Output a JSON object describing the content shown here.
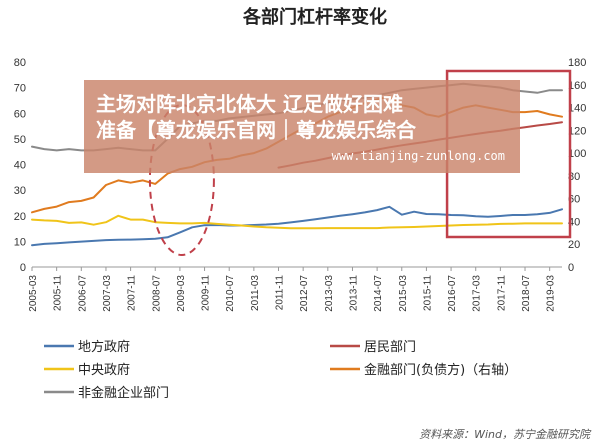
{
  "chart_data": {
    "type": "line",
    "title": "各部门杠杆率变化",
    "xlabel": "",
    "ylabel": "",
    "ylim": [
      0,
      80
    ],
    "y2lim": [
      0,
      180
    ],
    "yticks": [
      0,
      10,
      20,
      30,
      40,
      50,
      60,
      70,
      80
    ],
    "y2ticks": [
      0,
      20,
      40,
      60,
      80,
      100,
      120,
      140,
      160,
      180
    ],
    "x_tick_labels": [
      "2005-03",
      "2005-11",
      "2006-07",
      "2007-03",
      "2007-11",
      "2008-07",
      "2009-03",
      "2009-11",
      "2010-07",
      "2011-03",
      "2011-11",
      "2012-07",
      "2013-03",
      "2013-11",
      "2014-07",
      "2015-03",
      "2015-11",
      "2016-07",
      "2017-03",
      "2017-11",
      "2018-07",
      "2019-03"
    ],
    "x": [
      "2005-03",
      "2005-07",
      "2005-11",
      "2006-03",
      "2006-07",
      "2006-11",
      "2007-03",
      "2007-07",
      "2007-11",
      "2008-03",
      "2008-07",
      "2008-11",
      "2009-03",
      "2009-07",
      "2009-11",
      "2010-03",
      "2010-07",
      "2010-11",
      "2011-03",
      "2011-07",
      "2011-11",
      "2012-03",
      "2012-07",
      "2012-11",
      "2013-03",
      "2013-07",
      "2013-11",
      "2014-03",
      "2014-07",
      "2014-11",
      "2015-03",
      "2015-07",
      "2015-11",
      "2016-03",
      "2016-07",
      "2016-11",
      "2017-03",
      "2017-07",
      "2017-11",
      "2018-03",
      "2018-07",
      "2018-11",
      "2019-03",
      "2019-07"
    ],
    "series": [
      {
        "name": "地方政府",
        "axis": "left",
        "color": "#4a78b0",
        "values": [
          8.5,
          9,
          9.3,
          9.6,
          9.9,
          10.2,
          10.5,
          10.6,
          10.7,
          10.8,
          11,
          11.6,
          13.5,
          15.5,
          16.3,
          16.4,
          16.2,
          16.2,
          16.4,
          16.6,
          16.9,
          17.4,
          18,
          18.6,
          19.3,
          20,
          20.6,
          21.3,
          22.2,
          23.5,
          20.4,
          21.6,
          20.7,
          20.6,
          20.3,
          20.2,
          19.8,
          19.6,
          19.9,
          20.3,
          20.3,
          20.6,
          21.1,
          22.5
        ]
      },
      {
        "name": "居民部门",
        "axis": "left",
        "color": "#b84a46",
        "values": [
          null,
          null,
          null,
          null,
          null,
          null,
          null,
          null,
          null,
          null,
          null,
          null,
          null,
          null,
          null,
          null,
          null,
          null,
          null,
          null,
          38.8,
          39.7,
          40.7,
          41.5,
          42.5,
          43.5,
          44.3,
          45,
          45.8,
          46.7,
          47.5,
          48.2,
          48.9,
          49.7,
          50.4,
          51.2,
          51.9,
          52.6,
          53.2,
          53.9,
          54.5,
          55.2,
          55.8,
          56.5
        ]
      },
      {
        "name": "中央政府",
        "axis": "left",
        "color": "#f0c419",
        "values": [
          18.5,
          18.2,
          18,
          17.2,
          17.4,
          16.5,
          17.5,
          20,
          18.5,
          18.5,
          17.5,
          17.2,
          17,
          17,
          17.2,
          16.8,
          16.5,
          16.2,
          15.8,
          15.5,
          15.3,
          15.1,
          15.1,
          15.1,
          15.2,
          15.2,
          15.2,
          15.2,
          15.2,
          15.4,
          15.5,
          15.6,
          15.8,
          16,
          16.2,
          16.4,
          16.5,
          16.6,
          16.8,
          16.9,
          17,
          17,
          17,
          17
        ]
      },
      {
        "name": "金融部门(负债方)（右轴）",
        "axis": "right",
        "color": "#e07b1f",
        "values": [
          48,
          51,
          53,
          57,
          58,
          61,
          72,
          76,
          74,
          76,
          73,
          82,
          86,
          88,
          92,
          94,
          95,
          98,
          100,
          104,
          110,
          116,
          122,
          126,
          132,
          136,
          140,
          144,
          147,
          150,
          142,
          140,
          134,
          132,
          136,
          140,
          142,
          140,
          138,
          136,
          136,
          137,
          134,
          132
        ]
      },
      {
        "name": "非金融企业部门",
        "axis": "left",
        "color": "#8a8a8a",
        "values": [
          47,
          46,
          45.5,
          46,
          45.5,
          45.5,
          46,
          46.5,
          46,
          45.5,
          45.5,
          50,
          55,
          56,
          57,
          57,
          58,
          58.5,
          59,
          59.5,
          60,
          61,
          62,
          63,
          64,
          65,
          65.5,
          66,
          67,
          68,
          69,
          69.5,
          70,
          70.5,
          71,
          71.5,
          71,
          70.5,
          70,
          69,
          68.5,
          68,
          69,
          69
        ]
      }
    ],
    "legend_placement": "bottom"
  },
  "source": "资料来源：Wind，苏宁金融研究院",
  "watermark": {
    "line1": "主场对阵北京北体大 辽足做好困难",
    "line2": "准备【尊龙娱乐官网｜尊龙娱乐综合",
    "url": "www.tianjing-zunlong.com",
    "bg_color": "#c9846a"
  },
  "colors": {
    "highlight_box": "#c0404a",
    "dashed_ellipse": "#c0404a"
  }
}
